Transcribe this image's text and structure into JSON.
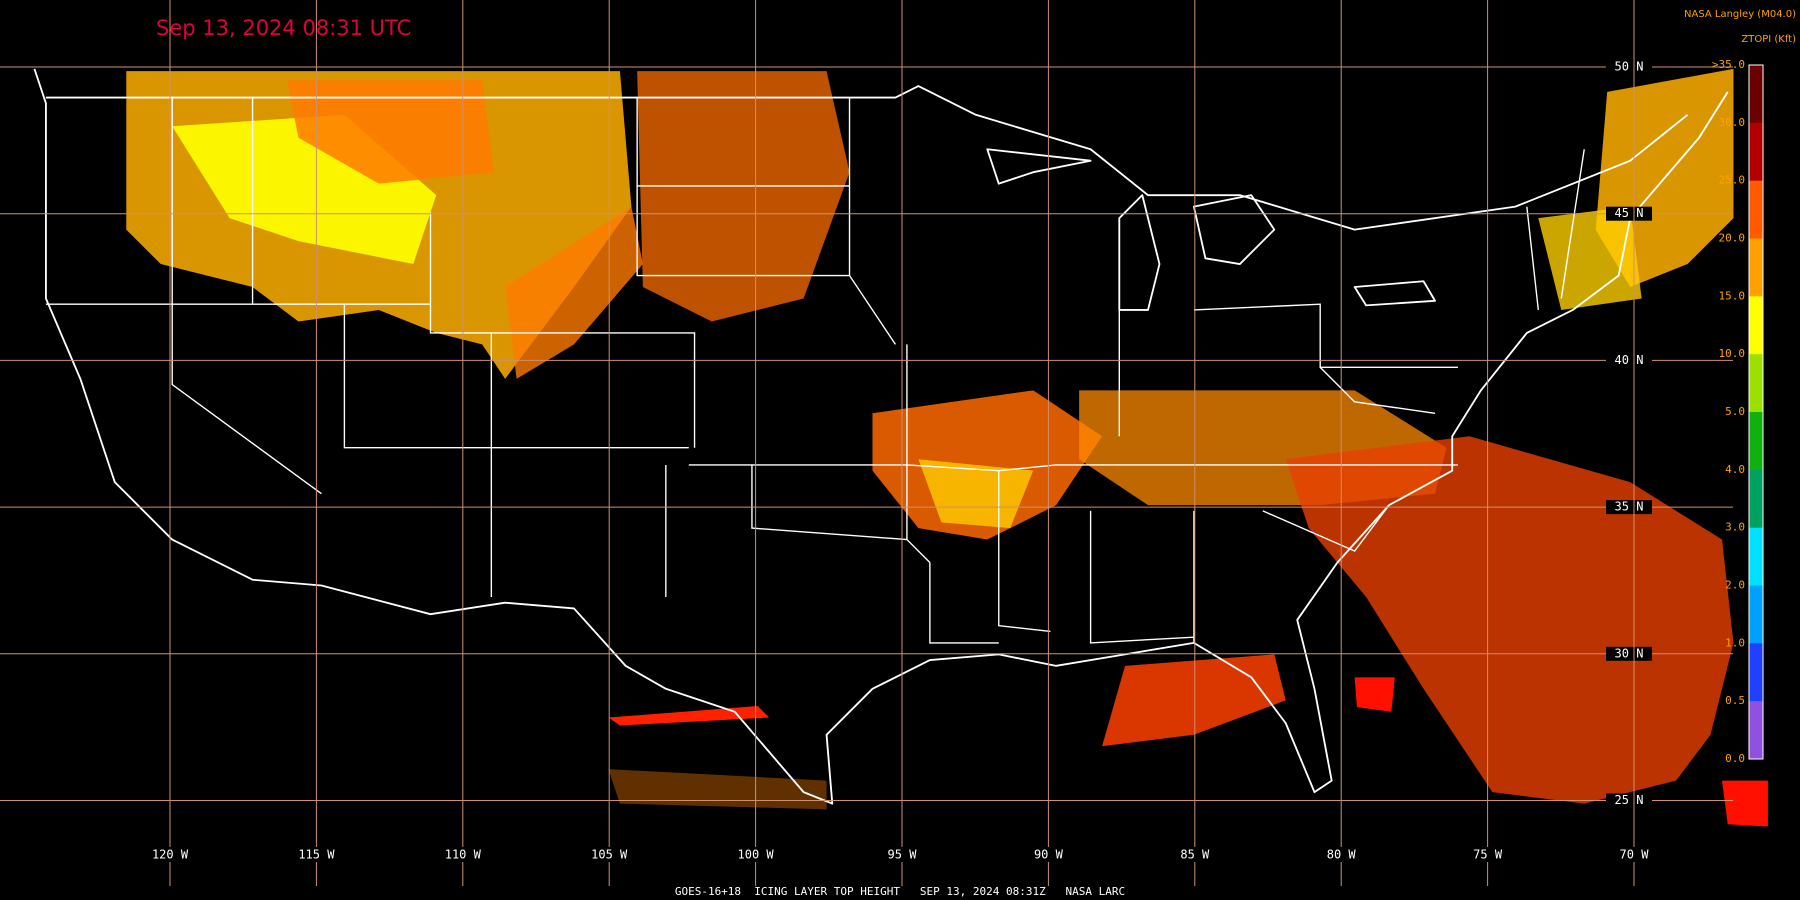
{
  "header": {
    "timestamp": "Sep 13, 2024 08:31 UTC",
    "credit": "NASA Langley (M04.0)",
    "product": "ZTOPI (Kft)"
  },
  "footer": "GOES-16+18  ICING LAYER TOP HEIGHT   SEP 13, 2024 08:31Z   NASA LARC",
  "latitudes": [
    "50 N",
    "45 N",
    "40 N",
    "35 N",
    "30 N",
    "25 N"
  ],
  "longitudes": [
    "120 W",
    "115 W",
    "110 W",
    "105 W",
    "100 W",
    "95 W",
    "90 W",
    "85 W",
    "80 W",
    "75 W",
    "70 W"
  ],
  "legend": {
    "labels": [
      ">35.0",
      "30.0",
      "25.0",
      "20.0",
      "15.0",
      "10.0",
      "5.0",
      "4.0",
      "3.0",
      "2.0",
      "1.0",
      "0.5",
      "0.0"
    ],
    "colors": [
      "#6a0000",
      "#b00000",
      "#ff5a00",
      "#ffa000",
      "#ffff00",
      "#9be000",
      "#10b010",
      "#00a060",
      "#00e0ff",
      "#00a0ff",
      "#2040ff",
      "#9050e0"
    ]
  }
}
